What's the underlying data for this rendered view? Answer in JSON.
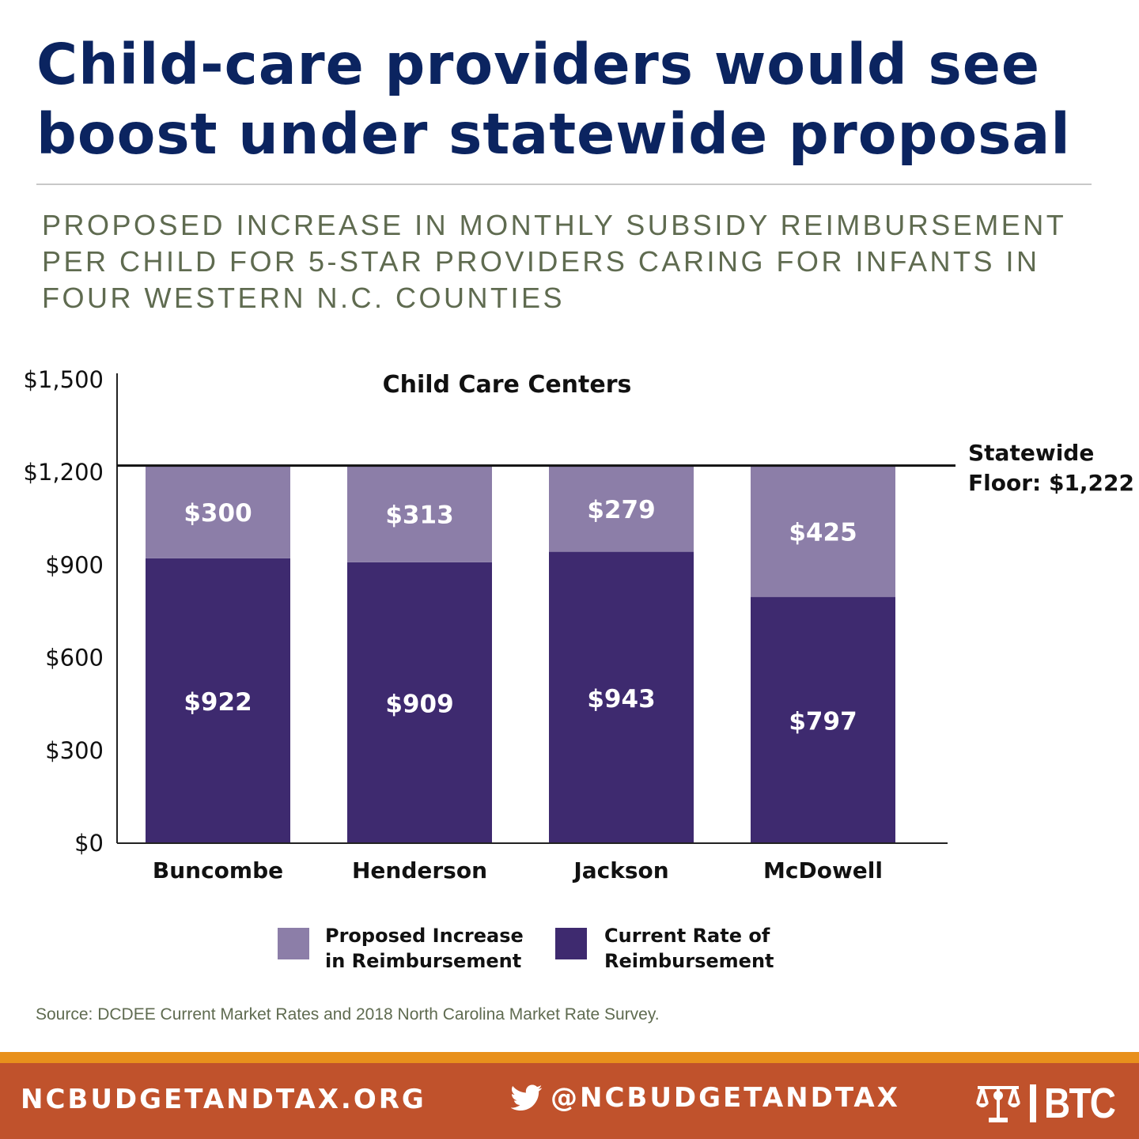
{
  "headline": "Child-care providers would see boost under statewide proposal",
  "subheadline": "PROPOSED INCREASE IN MONTHLY SUBSIDY REIMBURSEMENT PER CHILD FOR 5-STAR PROVIDERS CARING FOR INFANTS IN FOUR WESTERN N.C. COUNTIES",
  "chart_data": {
    "type": "bar",
    "stacked": true,
    "title": "Child Care Centers",
    "xlabel": "",
    "ylabel": "",
    "categories": [
      "Buncombe",
      "Henderson",
      "Jackson",
      "McDowell"
    ],
    "series": [
      {
        "name": "Current Rate of Reimbursement",
        "values": [
          922,
          909,
          943,
          797
        ],
        "labels": [
          "$922",
          "$909",
          "$943",
          "$797"
        ],
        "color": "#3e2a6f"
      },
      {
        "name": "Proposed Increase in Reimbursement",
        "values": [
          300,
          313,
          279,
          425
        ],
        "labels": [
          "$300",
          "$313",
          "$279",
          "$425"
        ],
        "color": "#8c7ea8"
      }
    ],
    "ylim": [
      0,
      1500
    ],
    "yticks": [
      0,
      300,
      600,
      900,
      1200,
      1500
    ],
    "ytick_labels": [
      "$0",
      "$300",
      "$600",
      "$900",
      "$1,200",
      "$1,500"
    ],
    "reference_line": {
      "value": 1222,
      "label_lines": [
        "Statewide",
        "Floor: $1,222"
      ]
    },
    "legend": {
      "placement": "bottom",
      "items": [
        {
          "lines": [
            "Proposed Increase",
            "in Reimbursement"
          ],
          "color": "#8c7ea8"
        },
        {
          "lines": [
            "Current Rate of",
            "Reimbursement"
          ],
          "color": "#3e2a6f"
        }
      ]
    },
    "grid": false
  },
  "source": "Source: DCDEE Current Market Rates and 2018 North Carolina Market Rate Survey.",
  "footer": {
    "website": "NCBUDGETANDTAX.ORG",
    "social_icon": "twitter-bird-icon",
    "social_handle": "@NCBUDGETANDTAX",
    "logo_text": "BTC",
    "logo_icon": "justice-logo-icon"
  },
  "colors": {
    "headline": "#0b2460",
    "subheadline": "#5f6b50",
    "footer_background": "#c0522c",
    "footer_stripe": "#e8901c"
  }
}
